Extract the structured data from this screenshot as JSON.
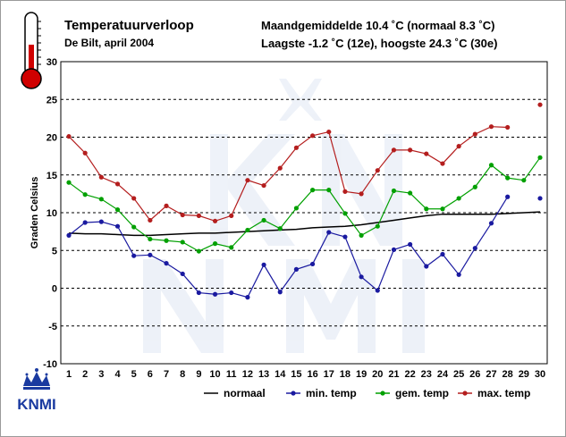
{
  "header": {
    "title": "Temperatuurverloop",
    "subtitle": "De Bilt, april 2004",
    "summary_line1": "Maandgemiddelde 10.4 ˚C (normaal 8.3 ˚C)",
    "summary_line2": "Laagste -1.2 ˚C (12e), hoogste 24.3 ˚C (30e)"
  },
  "logo": {
    "text": "KNMI"
  },
  "chart_data": {
    "type": "line",
    "ylabel": "Graden Celsius",
    "xlabel": "",
    "ylim": [
      -10,
      30
    ],
    "yticks": [
      30,
      25,
      20,
      15,
      10,
      5,
      0,
      -5,
      -10
    ],
    "x": [
      1,
      2,
      3,
      4,
      5,
      6,
      7,
      8,
      9,
      10,
      11,
      12,
      13,
      14,
      15,
      16,
      17,
      18,
      19,
      20,
      21,
      22,
      23,
      24,
      25,
      26,
      27,
      28,
      29,
      30
    ],
    "grid": "horizontal-dashed",
    "legend_placement": "bottom",
    "series": [
      {
        "name": "normaal",
        "color": "#000000",
        "markers": false,
        "values": [
          7.3,
          7.2,
          7.2,
          7.1,
          7.0,
          7.0,
          7.1,
          7.2,
          7.3,
          7.3,
          7.4,
          7.5,
          7.6,
          7.7,
          7.8,
          8.0,
          8.1,
          8.2,
          8.4,
          8.7,
          9.0,
          9.3,
          9.6,
          9.8,
          9.8,
          9.8,
          9.8,
          9.9,
          10.0,
          10.1
        ]
      },
      {
        "name": "min. temp",
        "color": "#1a1aa0",
        "markers": true,
        "values": [
          7.0,
          8.7,
          8.8,
          8.2,
          4.3,
          4.4,
          3.3,
          1.9,
          -0.6,
          -0.8,
          -0.6,
          -1.2,
          3.1,
          -0.5,
          2.5,
          3.2,
          7.4,
          6.8,
          1.5,
          -0.3,
          5.1,
          5.8,
          2.9,
          4.5,
          1.8,
          5.3,
          8.6,
          12.1,
          null,
          11.9
        ]
      },
      {
        "name": "gem. temp",
        "color": "#00a000",
        "markers": true,
        "values": [
          14.0,
          12.4,
          11.8,
          10.4,
          8.1,
          6.5,
          6.3,
          6.1,
          4.9,
          5.9,
          5.4,
          7.7,
          9.0,
          7.9,
          10.6,
          13.0,
          13.0,
          9.9,
          7.0,
          8.2,
          12.9,
          12.6,
          10.5,
          10.5,
          11.9,
          13.4,
          16.3,
          14.6,
          14.3,
          17.3
        ]
      },
      {
        "name": "max. temp",
        "color": "#b41e1e",
        "markers": true,
        "values": [
          20.1,
          17.9,
          14.7,
          13.8,
          11.9,
          9.0,
          10.9,
          9.7,
          9.6,
          8.9,
          9.6,
          14.3,
          13.6,
          15.9,
          18.6,
          20.2,
          20.7,
          12.8,
          12.5,
          15.6,
          18.3,
          18.3,
          17.8,
          16.5,
          18.8,
          20.4,
          21.4,
          21.3,
          null,
          24.3
        ]
      }
    ]
  }
}
